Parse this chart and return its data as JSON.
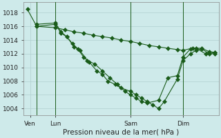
{
  "bg_color": "#ceeaea",
  "grid_color": "#b0d0d0",
  "line_color": "#1a5c1a",
  "markersize": 3,
  "linewidth": 0.8,
  "xlabel": "Pression niveau de la mer( hPa )",
  "xlabel_fontsize": 7.5,
  "tick_fontsize": 6.5,
  "yticks": [
    1004,
    1006,
    1008,
    1010,
    1012,
    1014,
    1016,
    1018
  ],
  "ylim": [
    1003.0,
    1019.5
  ],
  "xlim": [
    -0.2,
    10.2
  ],
  "xtick_labels": [
    "Ven",
    "Lun",
    "Sam",
    "Dim"
  ],
  "xtick_positions": [
    0.15,
    1.5,
    5.5,
    8.3
  ],
  "vline_positions": [
    0.5,
    1.5,
    5.5,
    8.3
  ],
  "series": [
    {
      "x": [
        0.0,
        0.5,
        1.5,
        2.0,
        2.5,
        3.0,
        3.5,
        4.0,
        4.5,
        5.0,
        5.5,
        6.0,
        6.5,
        7.0,
        7.5,
        8.0,
        8.3,
        8.8,
        9.3,
        9.7,
        10.0
      ],
      "y": [
        1018.5,
        1016.0,
        1015.8,
        1015.5,
        1015.2,
        1015.0,
        1014.7,
        1014.5,
        1014.3,
        1014.0,
        1013.8,
        1013.5,
        1013.2,
        1013.0,
        1012.8,
        1012.6,
        1012.5,
        1012.8,
        1012.8,
        1012.3,
        1012.2
      ]
    },
    {
      "x": [
        0.5,
        1.5,
        1.8,
        2.1,
        2.4,
        2.7,
        3.0,
        3.3,
        3.7,
        4.0,
        4.3,
        4.7,
        5.0,
        5.5,
        5.8,
        6.1,
        6.4,
        6.7,
        7.0,
        7.3,
        8.0,
        8.3,
        8.7,
        9.0,
        9.3,
        9.7,
        10.0
      ],
      "y": [
        1016.0,
        1016.3,
        1015.0,
        1014.5,
        1013.5,
        1012.7,
        1011.5,
        1010.8,
        1009.5,
        1009.0,
        1008.0,
        1007.5,
        1007.0,
        1006.5,
        1006.0,
        1005.5,
        1005.0,
        1004.5,
        1004.0,
        1005.0,
        1008.3,
        1011.0,
        1012.0,
        1012.5,
        1012.7,
        1012.0,
        1012.2
      ]
    },
    {
      "x": [
        0.5,
        1.5,
        1.8,
        2.1,
        2.5,
        2.8,
        3.2,
        3.6,
        4.0,
        4.4,
        4.8,
        5.2,
        5.5,
        5.8,
        6.1,
        6.4,
        7.0,
        7.5,
        8.0,
        8.3,
        8.7,
        9.0,
        9.5,
        10.0
      ],
      "y": [
        1016.3,
        1016.5,
        1015.2,
        1014.5,
        1013.0,
        1012.5,
        1011.0,
        1010.5,
        1009.5,
        1008.5,
        1007.5,
        1006.5,
        1006.0,
        1005.5,
        1005.0,
        1004.8,
        1005.2,
        1008.5,
        1008.8,
        1011.5,
        1012.7,
        1012.8,
        1012.0,
        1012.0
      ]
    }
  ]
}
